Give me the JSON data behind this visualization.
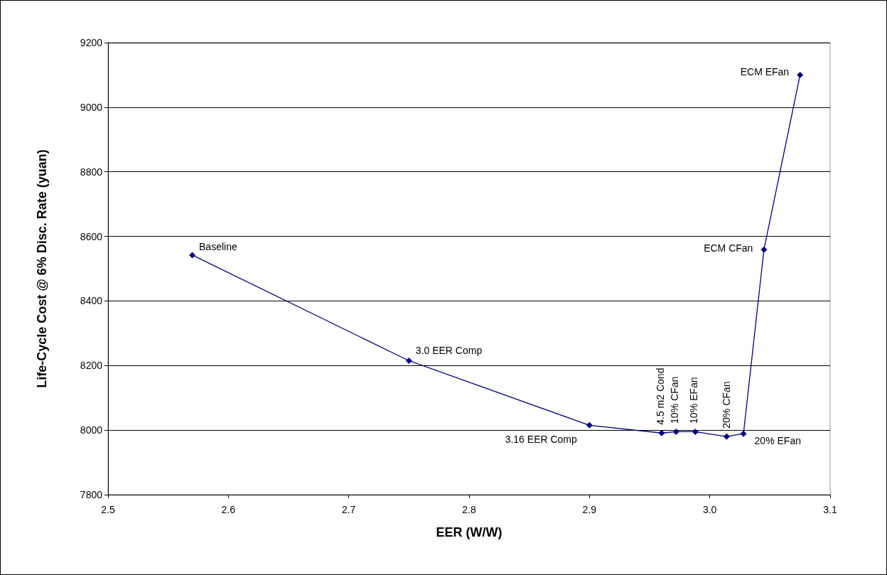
{
  "chart_data": {
    "type": "line",
    "xlabel": "EER (W/W)",
    "ylabel": "Life-Cycle Cost @ 6% Disc. Rate (yuan)",
    "x": [
      2.57,
      2.75,
      2.9,
      2.96,
      2.972,
      2.988,
      3.014,
      3.028,
      3.045,
      3.075
    ],
    "series": [
      {
        "color": "#000080",
        "values": [
          8542,
          8215,
          8015,
          7991,
          7995,
          7995,
          7980,
          7989,
          8559,
          9100
        ]
      }
    ],
    "xlim": [
      2.5,
      3.1
    ],
    "xticks": [
      2.5,
      2.6,
      2.7,
      2.8,
      2.9,
      {
        "value": 3,
        "label": "3.0"
      },
      3.1
    ],
    "ylim": [
      7800,
      9200
    ],
    "yticks": [
      7800,
      8000,
      8200,
      8400,
      8600,
      8800,
      9000,
      9200
    ],
    "grid": "y",
    "marker": "diamond",
    "line_style": "solid",
    "annotations": [
      {
        "text": "Baseline",
        "x": 2.57,
        "y": 8542
      },
      {
        "text": "3.0 EER Comp",
        "x": 2.75,
        "y": 8215
      },
      {
        "text": "3.16 EER Comp",
        "x": 2.9,
        "y": 8015
      },
      {
        "text": "4.5 m2 Cond",
        "x": 2.96,
        "y": 7991
      },
      {
        "text": "10% CFan",
        "x": 2.972,
        "y": 7995
      },
      {
        "text": "10% EFan",
        "x": 2.988,
        "y": 7995
      },
      {
        "text": "20% CFan",
        "x": 3.014,
        "y": 7980
      },
      {
        "text": "20% EFan",
        "x": 3.028,
        "y": 7989
      },
      {
        "text": "ECM CFan",
        "x": 3.045,
        "y": 8559
      },
      {
        "text": "ECM EFan",
        "x": 3.075,
        "y": 9100
      }
    ]
  }
}
